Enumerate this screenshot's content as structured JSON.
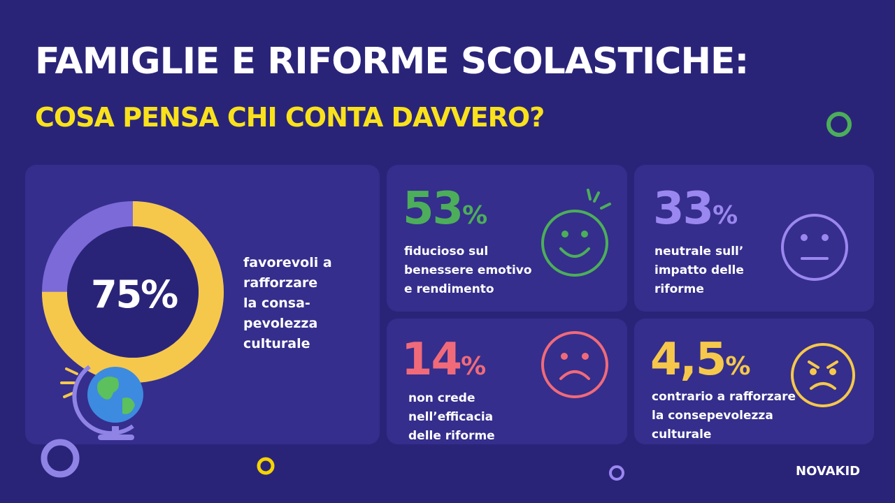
{
  "header": {
    "title": "FAMIGLIE E RIFORME SCOLASTICHE:",
    "subtitle": "COSA PENSA CHI CONTA DAVVERO?"
  },
  "main_stat": {
    "value": 75,
    "label": "75%",
    "lines": [
      "favorevoli a",
      "rafforzare",
      "la consa-",
      "pevolezza",
      "culturale"
    ]
  },
  "stats": [
    {
      "number": "53",
      "unit": "%",
      "lines": [
        "fiducioso sul",
        "benessere emotivo",
        "e rendimento"
      ]
    },
    {
      "number": "33",
      "unit": "%",
      "lines": [
        "neutrale sull’",
        "impatto delle",
        "riforme"
      ]
    },
    {
      "number": "14",
      "unit": "%",
      "lines": [
        "non crede",
        "nell’efficacia",
        "delle riforme"
      ]
    },
    {
      "number": "4,5",
      "unit": "%",
      "lines": [
        "contrario a rafforzare",
        "la consepevolezza",
        "culturale"
      ]
    }
  ],
  "brand": "NOVAKID"
}
